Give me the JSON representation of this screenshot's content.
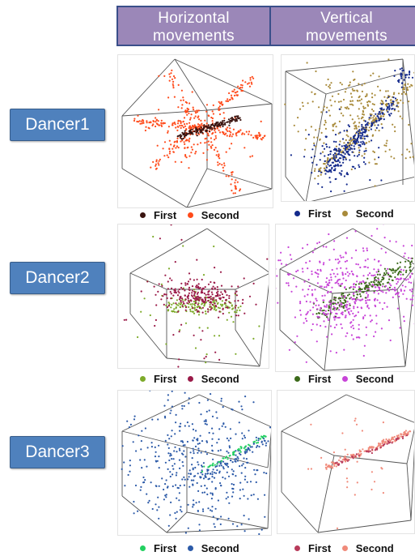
{
  "headers": {
    "horizontal": [
      "Horizontal",
      "movements"
    ],
    "vertical": [
      "Vertical",
      "movements"
    ]
  },
  "dancers": [
    {
      "label": "Dancer1",
      "horizontal": {
        "legend": [
          {
            "label": "First",
            "color": "#3a1410"
          },
          {
            "label": "Second",
            "color": "#ff4a1a"
          }
        ]
      },
      "vertical": {
        "legend": [
          {
            "label": "First",
            "color": "#142a8c"
          },
          {
            "label": "Second",
            "color": "#a88a3a"
          }
        ]
      }
    },
    {
      "label": "Dancer2",
      "horizontal": {
        "legend": [
          {
            "label": "First",
            "color": "#7daa2a"
          },
          {
            "label": "Second",
            "color": "#9a1a48"
          }
        ]
      },
      "vertical": {
        "legend": [
          {
            "label": "First",
            "color": "#3c6a1a"
          },
          {
            "label": "Second",
            "color": "#c844d8"
          }
        ]
      }
    },
    {
      "label": "Dancer3",
      "horizontal": {
        "legend": [
          {
            "label": "First",
            "color": "#22d060"
          },
          {
            "label": "Second",
            "color": "#2c5aa8"
          }
        ]
      },
      "vertical": {
        "legend": [
          {
            "label": "First",
            "color": "#b83a5a"
          },
          {
            "label": "Second",
            "color": "#f08a7a"
          }
        ]
      }
    }
  ]
}
